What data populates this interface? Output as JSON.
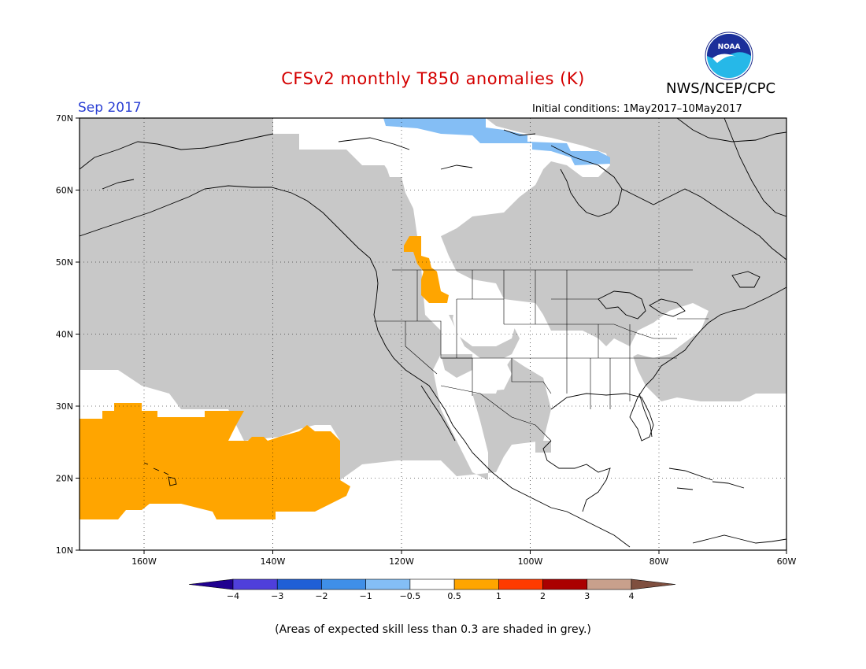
{
  "header": {
    "title": "CFSv2 monthly T850 anomalies (K)",
    "month": "Sep 2017",
    "initial_conditions": "Initial conditions: 1May2017–10May2017",
    "agency": "NWS/NCEP/CPC",
    "logo_text": "NOAA"
  },
  "map": {
    "lat_labels": [
      "70N",
      "60N",
      "50N",
      "40N",
      "30N",
      "20N",
      "10N"
    ],
    "lon_labels": [
      "160W",
      "140W",
      "120W",
      "100W",
      "80W",
      "60W"
    ],
    "colors": {
      "skill_grey": "#c8c8c8",
      "positive_0.5_1": "#ffa500",
      "negative_0.5_1": "#7fbfff",
      "neutral": "#ffffff"
    }
  },
  "colorbar": {
    "labels": [
      "−4",
      "−3",
      "−2",
      "−1",
      "−0.5",
      "0.5",
      "1",
      "2",
      "3",
      "4"
    ],
    "colors": [
      "#200090",
      "#4f3fdb",
      "#1f5fd6",
      "#3f8fe8",
      "#84bef5",
      "#ffffff",
      "#ffa500",
      "#ff3b00",
      "#aa0000",
      "#c8a08c",
      "#7f4f3f"
    ]
  },
  "footnote": "(Areas of expected skill less than 0.3 are shaded in grey.)"
}
